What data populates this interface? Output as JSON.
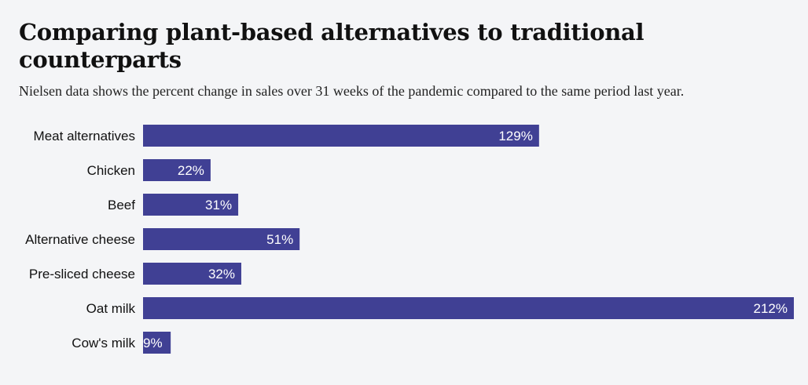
{
  "title": "Comparing plant-based alternatives to traditional counterparts",
  "subtitle": "Nielsen data shows the percent change in sales over 31 weeks of the pandemic compared to the same period last year.",
  "colors": {
    "bar": "#404094",
    "background": "#f4f5f7"
  },
  "chart_data": {
    "type": "bar",
    "orientation": "horizontal",
    "categories": [
      "Meat alternatives",
      "Chicken",
      "Beef",
      "Alternative cheese",
      "Pre-sliced cheese",
      "Oat milk",
      "Cow's milk"
    ],
    "values": [
      129,
      22,
      31,
      51,
      32,
      212,
      9
    ],
    "value_labels": [
      "129%",
      "22%",
      "31%",
      "51%",
      "32%",
      "212%",
      "9%"
    ],
    "xlim": [
      0,
      212
    ],
    "grid": false,
    "legend": "none"
  }
}
